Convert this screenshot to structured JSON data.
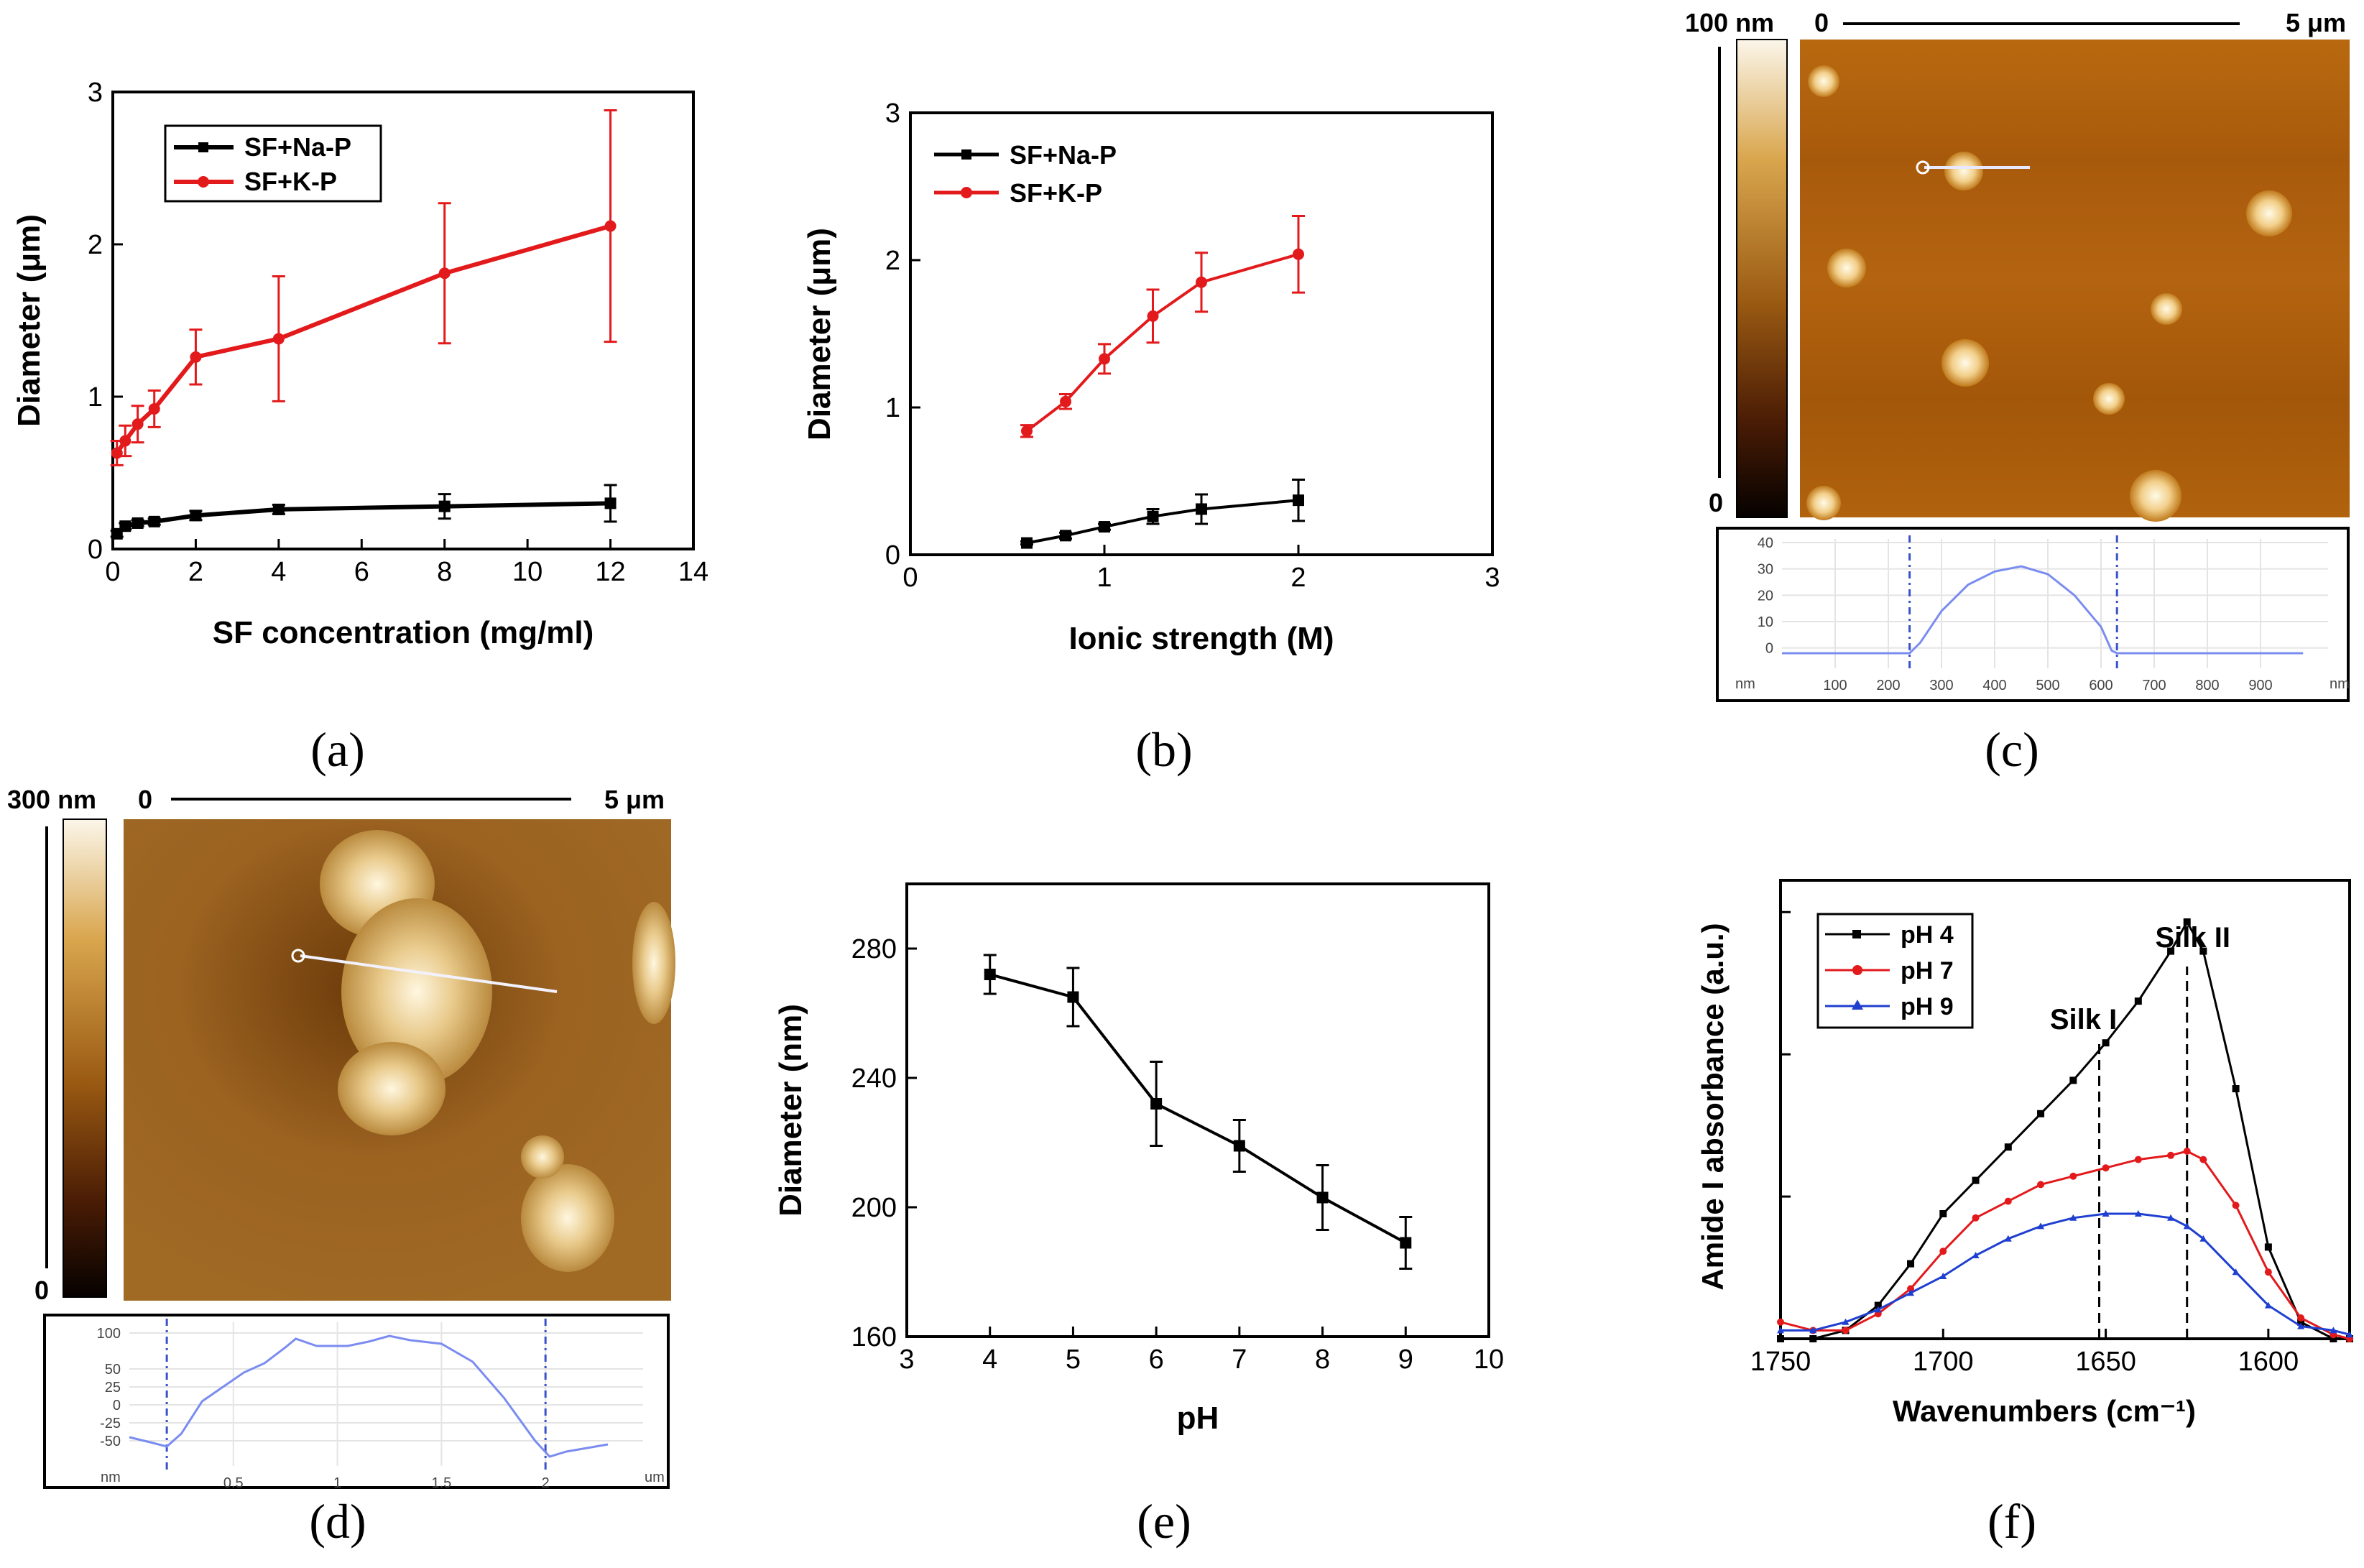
{
  "chart_data": [
    {
      "id": "a",
      "type": "line",
      "panel_label": "(a)",
      "xlabel": "SF concentration (mg/ml)",
      "ylabel": "Diameter (μm)",
      "xlim": [
        0,
        14
      ],
      "ylim": [
        0,
        3
      ],
      "xticks": [
        "0",
        "2",
        "4",
        "6",
        "8",
        "10",
        "12",
        "14"
      ],
      "yticks": [
        "0",
        "1",
        "2",
        "3"
      ],
      "legend": "top-left",
      "series": [
        {
          "name": "SF+Na-P",
          "color": "#000000",
          "marker": "square",
          "x": [
            0.1,
            0.3,
            0.6,
            1,
            2,
            4,
            8,
            12
          ],
          "y": [
            0.1,
            0.15,
            0.17,
            0.18,
            0.22,
            0.26,
            0.28,
            0.3
          ],
          "err": [
            0.02,
            0.02,
            0.02,
            0.02,
            0.03,
            0.03,
            0.08,
            0.12
          ]
        },
        {
          "name": "SF+K-P",
          "color": "#e31a1c",
          "marker": "circle",
          "x": [
            0.1,
            0.3,
            0.6,
            1,
            2,
            4,
            8,
            12
          ],
          "y": [
            0.63,
            0.71,
            0.82,
            0.92,
            1.26,
            1.38,
            1.81,
            2.12
          ],
          "err": [
            0.08,
            0.1,
            0.12,
            0.12,
            0.18,
            0.41,
            0.46,
            0.76
          ]
        }
      ]
    },
    {
      "id": "b",
      "type": "line",
      "panel_label": "(b)",
      "xlabel": "Ionic strength (M)",
      "ylabel": "Diameter (μm)",
      "xlim": [
        0,
        3
      ],
      "ylim": [
        0,
        3
      ],
      "xticks": [
        "0",
        "1",
        "2",
        "3"
      ],
      "yticks": [
        "0",
        "1",
        "2",
        "3"
      ],
      "legend": "top-left",
      "series": [
        {
          "name": "SF+Na-P",
          "color": "#000000",
          "marker": "square",
          "x": [
            0.6,
            0.8,
            1,
            1.25,
            1.5,
            2
          ],
          "y": [
            0.08,
            0.13,
            0.19,
            0.26,
            0.31,
            0.37
          ],
          "err": [
            0.01,
            0.02,
            0.02,
            0.05,
            0.1,
            0.14
          ]
        },
        {
          "name": "SF+K-P",
          "color": "#e31a1c",
          "marker": "circle",
          "x": [
            0.6,
            0.8,
            1,
            1.25,
            1.5,
            2
          ],
          "y": [
            0.84,
            1.04,
            1.33,
            1.62,
            1.85,
            2.04
          ],
          "err": [
            0.04,
            0.05,
            0.1,
            0.18,
            0.2,
            0.26
          ]
        }
      ]
    },
    {
      "id": "c",
      "type": "image",
      "panel_label": "(c)",
      "scale_max": "100 nm",
      "scale_min": "0",
      "bar_start": "0",
      "bar_end": "5 μm",
      "profile": {
        "yticks": [
          "40",
          "30",
          "20",
          "10",
          "0"
        ],
        "xticks": [
          "100",
          "200",
          "300",
          "400",
          "500",
          "600",
          "700",
          "800",
          "900"
        ],
        "y_unit": "nm",
        "x_unit": "nm",
        "xlim": [
          0,
          1000
        ],
        "ylim": [
          -5,
          40
        ],
        "x": [
          0,
          50,
          100,
          150,
          200,
          240,
          260,
          300,
          350,
          400,
          450,
          500,
          550,
          600,
          620,
          630,
          700,
          800,
          900,
          980
        ],
        "y": [
          -2,
          -2,
          -2,
          -2,
          -2,
          -2,
          2,
          14,
          24,
          29,
          31,
          28,
          20,
          8,
          -1,
          -2,
          -2,
          -2,
          -2,
          -2
        ],
        "markers": [
          240,
          630
        ]
      }
    },
    {
      "id": "d",
      "type": "image",
      "panel_label": "(d)",
      "scale_max": "300 nm",
      "scale_min": "0",
      "bar_start": "0",
      "bar_end": "5 μm",
      "profile": {
        "yticks": [
          "100",
          "50",
          "25",
          "0",
          "-25",
          "-50"
        ],
        "xticks": [
          "0.5",
          "1",
          "1.5",
          "2"
        ],
        "y_unit": "nm",
        "x_unit": "um",
        "xlim": [
          0,
          2.4
        ],
        "ylim": [
          -75,
          110
        ],
        "x": [
          0,
          0.1,
          0.18,
          0.25,
          0.35,
          0.45,
          0.55,
          0.65,
          0.75,
          0.8,
          0.9,
          1.05,
          1.15,
          1.25,
          1.35,
          1.5,
          1.65,
          1.8,
          1.95,
          2.02,
          2.1,
          2.2,
          2.3
        ],
        "y": [
          -45,
          -52,
          -58,
          -40,
          5,
          25,
          45,
          58,
          80,
          92,
          82,
          82,
          88,
          96,
          90,
          85,
          60,
          10,
          -50,
          -72,
          -65,
          -60,
          -55
        ],
        "markers": [
          0.18,
          2.0
        ]
      }
    },
    {
      "id": "e",
      "type": "line",
      "panel_label": "(e)",
      "xlabel": "pH",
      "ylabel": "Diameter (nm)",
      "xlim": [
        3,
        10
      ],
      "ylim": [
        160,
        300
      ],
      "xticks": [
        "3",
        "4",
        "5",
        "6",
        "7",
        "8",
        "9",
        "10"
      ],
      "yticks": [
        "160",
        "200",
        "240",
        "280"
      ],
      "series": [
        {
          "name": "",
          "color": "#000000",
          "marker": "square",
          "x": [
            4,
            5,
            6,
            7,
            8,
            9
          ],
          "y": [
            272,
            265,
            232,
            219,
            203,
            189
          ],
          "err": [
            6,
            9,
            13,
            8,
            10,
            8
          ]
        }
      ]
    },
    {
      "id": "f",
      "type": "line",
      "panel_label": "(f)",
      "xlabel": "Wavenumbers (cm⁻¹)",
      "ylabel": "Amide I absorbance (a.u.)",
      "xlim": [
        1750,
        1575
      ],
      "ylim": [
        0,
        1.1
      ],
      "xticks": [
        "1750",
        "1700",
        "1650",
        "1600"
      ],
      "annotations": [
        {
          "text": "Silk I",
          "x": 1652
        },
        {
          "text": "Silk II",
          "x": 1625
        }
      ],
      "legend": "top-left",
      "series": [
        {
          "name": "pH 4",
          "color": "#000000",
          "marker": "square",
          "x": [
            1750,
            1740,
            1730,
            1720,
            1710,
            1700,
            1690,
            1680,
            1670,
            1660,
            1650,
            1640,
            1630,
            1625,
            1620,
            1610,
            1600,
            1590,
            1580,
            1575
          ],
          "y": [
            0.0,
            0.0,
            0.02,
            0.08,
            0.18,
            0.3,
            0.38,
            0.46,
            0.54,
            0.62,
            0.71,
            0.81,
            0.93,
            1.0,
            0.93,
            0.6,
            0.22,
            0.04,
            0.0,
            0.0
          ]
        },
        {
          "name": "pH 7",
          "color": "#e31a1c",
          "marker": "circle",
          "x": [
            1750,
            1740,
            1730,
            1720,
            1710,
            1700,
            1690,
            1680,
            1670,
            1660,
            1650,
            1640,
            1630,
            1625,
            1620,
            1610,
            1600,
            1590,
            1580,
            1575
          ],
          "y": [
            0.04,
            0.02,
            0.02,
            0.06,
            0.12,
            0.21,
            0.29,
            0.33,
            0.37,
            0.39,
            0.41,
            0.43,
            0.44,
            0.45,
            0.43,
            0.32,
            0.16,
            0.05,
            0.01,
            0.0
          ]
        },
        {
          "name": "pH 9",
          "color": "#1f3fd0",
          "marker": "triangle",
          "x": [
            1750,
            1740,
            1730,
            1720,
            1710,
            1700,
            1690,
            1680,
            1670,
            1660,
            1650,
            1640,
            1630,
            1625,
            1620,
            1610,
            1600,
            1590,
            1580,
            1575
          ],
          "y": [
            0.02,
            0.02,
            0.04,
            0.07,
            0.11,
            0.15,
            0.2,
            0.24,
            0.27,
            0.29,
            0.3,
            0.3,
            0.29,
            0.27,
            0.24,
            0.16,
            0.08,
            0.03,
            0.02,
            0.01
          ]
        }
      ]
    }
  ]
}
